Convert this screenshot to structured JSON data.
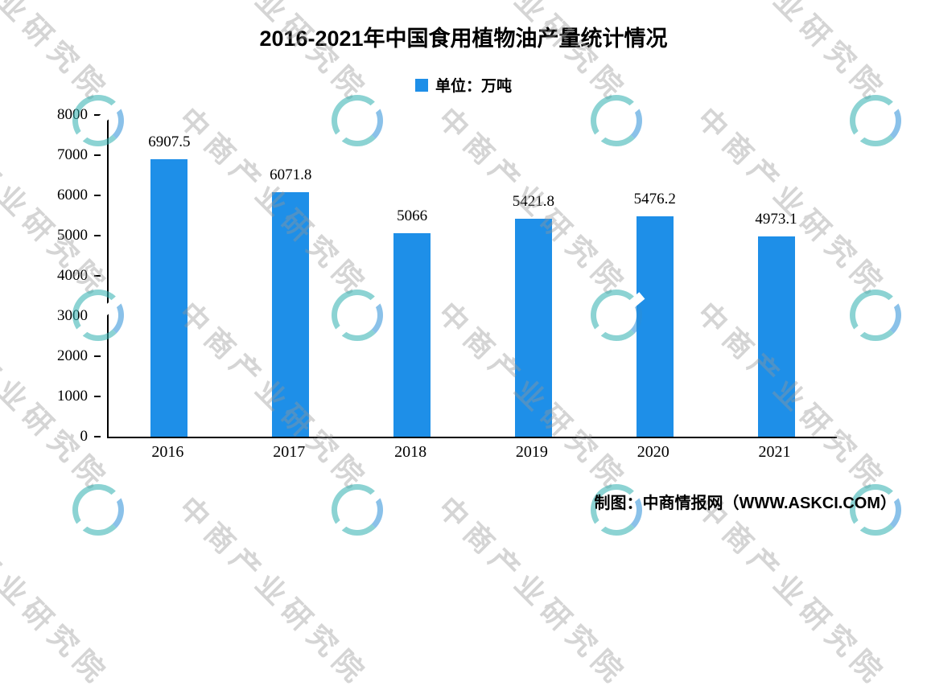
{
  "title": "2016-2021年中国食用植物油产量统计情况",
  "legend": {
    "label": "单位：万吨"
  },
  "colors": {
    "bar": "#1E8FE8",
    "watermark_teal": "#2FB0B0",
    "watermark_blue": "#2A8FD8"
  },
  "chart_data": {
    "type": "bar",
    "title": "2016-2021年中国食用植物油产量统计情况",
    "categories": [
      "2016",
      "2017",
      "2018",
      "2019",
      "2020",
      "2021"
    ],
    "values": [
      6907.5,
      6071.8,
      5066,
      5421.8,
      5476.2,
      4973.1
    ],
    "value_labels": [
      "6907.5",
      "6071.8",
      "5066",
      "5421.8",
      "5476.2",
      "4973.1"
    ],
    "unit": "万吨",
    "xlabel": "",
    "ylabel": "",
    "ylim": [
      0,
      8000
    ],
    "y_ticks": [
      0,
      1000,
      2000,
      3000,
      4000,
      5000,
      6000,
      7000,
      8000
    ],
    "grid": false,
    "legend_position": "top",
    "bar_color": "#1E8FE8"
  },
  "watermark": {
    "text": "中商产业研究院"
  },
  "source": "制图：中商情报网（WWW.ASKCI.COM）"
}
